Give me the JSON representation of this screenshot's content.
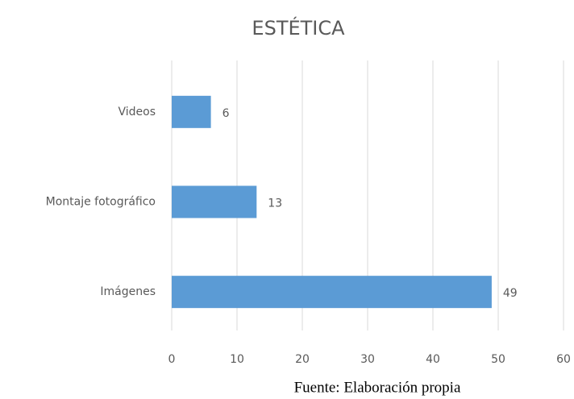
{
  "chart_data": {
    "type": "bar",
    "orientation": "horizontal",
    "title": "ESTÉTICA",
    "categories": [
      "Videos",
      "Montaje fotográfico",
      "Imágenes"
    ],
    "values": [
      6,
      13,
      49
    ],
    "color": "#5b9bd5",
    "xlim": [
      0,
      60
    ],
    "xticks": [
      0,
      10,
      20,
      30,
      40,
      50,
      60
    ],
    "grid": true,
    "source": "Fuente: Elaboración propia"
  }
}
